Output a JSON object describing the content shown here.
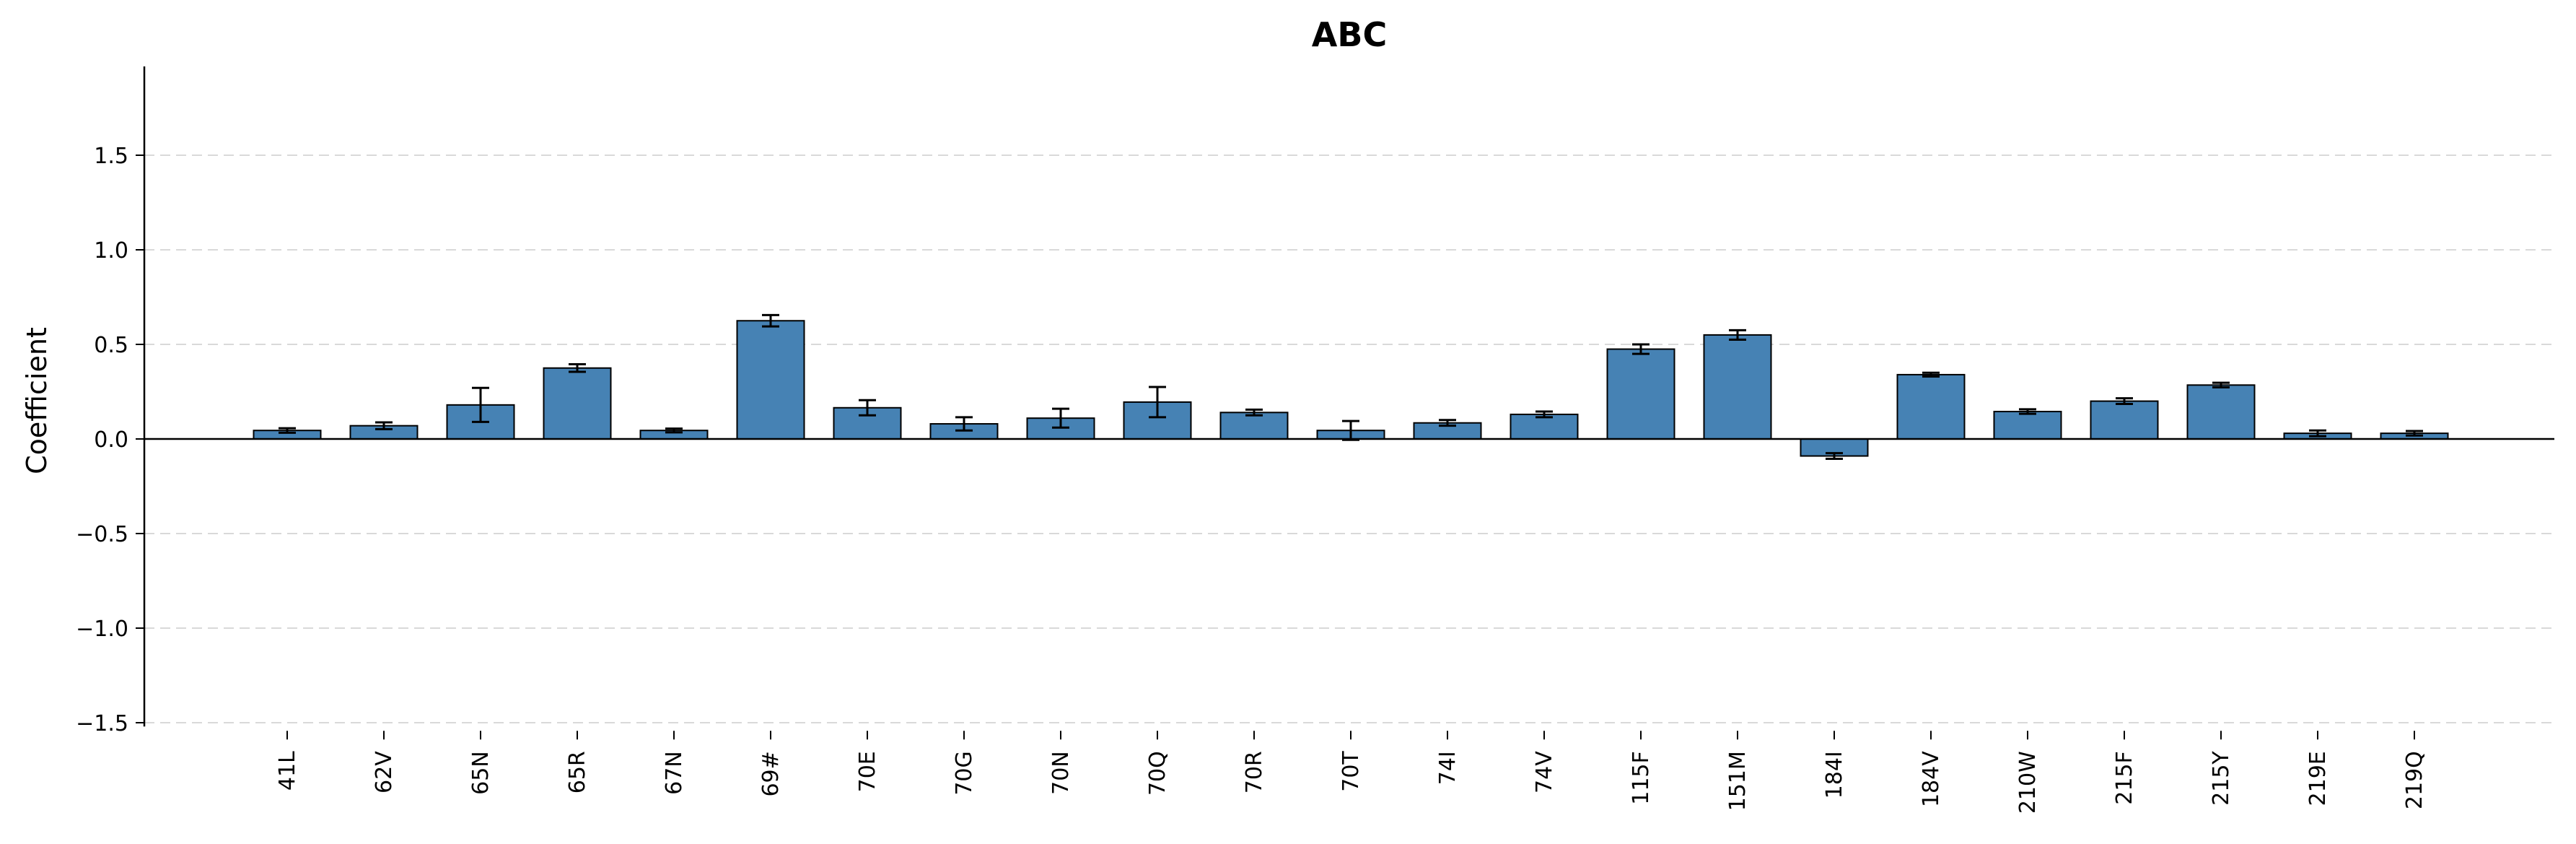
{
  "chart_data": {
    "type": "bar",
    "title": "ABC",
    "xlabel": "",
    "ylabel": "Coefficient",
    "ylim": [
      -1.52,
      1.95
    ],
    "yticks": [
      -1.5,
      -1.0,
      -0.5,
      0.0,
      0.5,
      1.0,
      1.5
    ],
    "ytick_labels": [
      "−1.5",
      "−1.0",
      "−0.5",
      "0.0",
      "0.5",
      "1.0",
      "1.5"
    ],
    "grid": "horizontal dashed",
    "bar_color": "#4682b4",
    "categories": [
      "41L",
      "62V",
      "65N",
      "65R",
      "67N",
      "69#",
      "70E",
      "70G",
      "70N",
      "70Q",
      "70R",
      "70T",
      "74I",
      "74V",
      "115F",
      "151M",
      "184I",
      "184V",
      "210W",
      "215F",
      "215Y",
      "219E",
      "219Q"
    ],
    "values": [
      0.045,
      0.07,
      0.18,
      0.375,
      0.045,
      0.625,
      0.165,
      0.08,
      0.11,
      0.195,
      0.14,
      0.045,
      0.085,
      0.13,
      0.475,
      0.55,
      -0.09,
      0.34,
      0.145,
      0.2,
      0.285,
      0.03,
      0.03
    ],
    "errors": [
      0.012,
      0.018,
      0.09,
      0.02,
      0.01,
      0.03,
      0.04,
      0.035,
      0.05,
      0.08,
      0.015,
      0.05,
      0.015,
      0.015,
      0.025,
      0.025,
      0.015,
      0.01,
      0.012,
      0.015,
      0.012,
      0.015,
      0.012
    ]
  }
}
